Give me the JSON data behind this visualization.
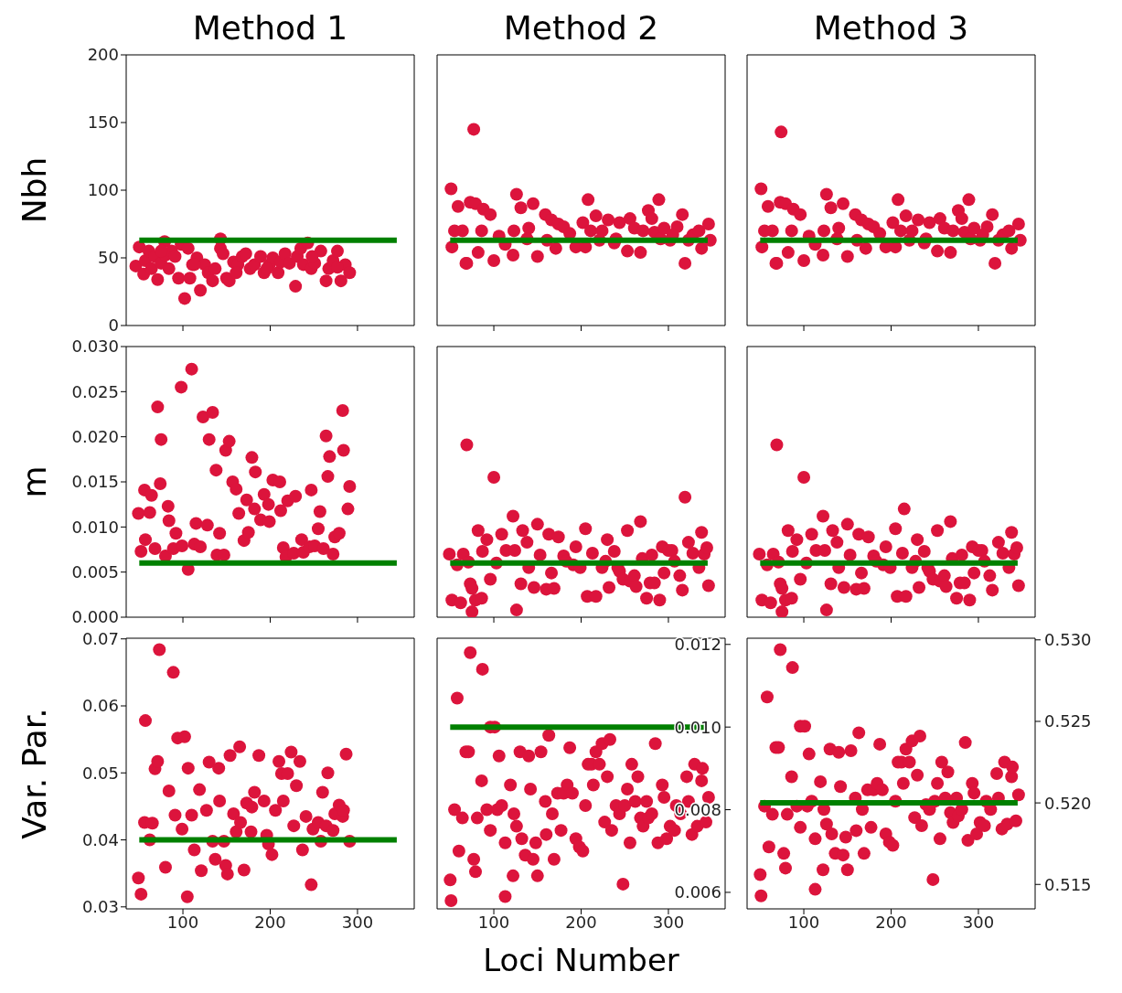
{
  "chart_data": [
    {
      "type": "scatter",
      "title": "Method 1",
      "ylabel": "Nbh",
      "xlim": [
        35,
        365
      ],
      "xticks": [
        100,
        200,
        300
      ],
      "ylim": [
        0,
        200
      ],
      "yticks": [
        0,
        50,
        100,
        150,
        200
      ],
      "tick_labels": "y",
      "series": [
        {
          "type": "scatter",
          "color": "#dc143c",
          "marker": "circle",
          "x": [
            46,
            50,
            55,
            57,
            61,
            64,
            68,
            71,
            75,
            79,
            80,
            84,
            87,
            91,
            95,
            98,
            102,
            106,
            108,
            111,
            116,
            120,
            125,
            129,
            134,
            137,
            143,
            143,
            146,
            150,
            153,
            158,
            163,
            168,
            172,
            177,
            182,
            189,
            193,
            199,
            203,
            209,
            212,
            217,
            222,
            229,
            231,
            235,
            238,
            243,
            247,
            251,
            258,
            264,
            267,
            272,
            277,
            281,
            286,
            291,
            75,
            113,
            161,
            196,
            248,
            277
          ],
          "values": [
            44,
            58,
            38,
            48,
            55,
            42,
            51,
            34,
            46,
            62,
            52,
            42,
            55,
            51,
            35,
            60,
            20,
            57,
            35,
            45,
            50,
            26,
            45,
            39,
            33,
            42,
            57,
            64,
            53,
            35,
            33,
            47,
            45,
            51,
            53,
            42,
            45,
            51,
            39,
            45,
            50,
            39,
            47,
            53,
            46,
            29,
            51,
            57,
            45,
            61,
            42,
            46,
            55,
            33,
            42,
            48,
            55,
            33,
            45,
            39,
            55,
            45,
            39,
            42,
            51,
            43
          ]
        },
        {
          "type": "line",
          "color": "#008000",
          "x": [
            50,
            345
          ],
          "values": [
            63,
            63
          ]
        }
      ]
    },
    {
      "type": "scatter",
      "title": "Method 2",
      "xlim": [
        35,
        365
      ],
      "xticks": [
        100,
        200,
        300
      ],
      "ylim": [
        0,
        200
      ],
      "tick_labels": false,
      "series": [
        {
          "type": "scatter",
          "color": "#dc143c",
          "marker": "circle",
          "x": [
            51,
            52,
            59,
            64,
            69,
            73,
            77,
            79,
            82,
            86,
            88,
            96,
            100,
            106,
            113,
            122,
            123,
            126,
            131,
            140,
            145,
            150,
            159,
            161,
            166,
            171,
            174,
            180,
            187,
            194,
            202,
            205,
            208,
            211,
            217,
            224,
            231,
            238,
            244,
            253,
            256,
            261,
            268,
            271,
            277,
            281,
            284,
            289,
            291,
            295,
            302,
            310,
            316,
            319,
            323,
            328,
            335,
            338,
            346,
            348,
            55,
            68,
            138,
            221,
            240,
            305
          ],
          "values": [
            101,
            58,
            88,
            70,
            46,
            91,
            145,
            90,
            54,
            70,
            86,
            82,
            48,
            66,
            60,
            52,
            70,
            97,
            87,
            72,
            90,
            51,
            82,
            63,
            78,
            57,
            75,
            73,
            68,
            58,
            76,
            58,
            93,
            70,
            81,
            70,
            78,
            61,
            76,
            55,
            79,
            72,
            54,
            70,
            85,
            79,
            69,
            93,
            64,
            72,
            63,
            73,
            82,
            46,
            63,
            67,
            70,
            57,
            75,
            63,
            70,
            46,
            64,
            63,
            64,
            67
          ]
        },
        {
          "type": "line",
          "color": "#008000",
          "x": [
            50,
            345
          ],
          "values": [
            63,
            63
          ]
        }
      ]
    },
    {
      "type": "scatter",
      "title": "Method 3",
      "xlim": [
        35,
        365
      ],
      "xticks": [
        100,
        200,
        300
      ],
      "ylim": [
        0,
        200
      ],
      "tick_labels": false,
      "series": [
        {
          "type": "scatter",
          "color": "#dc143c",
          "marker": "circle",
          "x": [
            51,
            52,
            59,
            64,
            69,
            73,
            74,
            79,
            82,
            86,
            88,
            96,
            100,
            106,
            113,
            122,
            123,
            126,
            131,
            140,
            145,
            150,
            159,
            161,
            166,
            171,
            174,
            180,
            187,
            194,
            202,
            205,
            208,
            211,
            217,
            224,
            231,
            238,
            244,
            253,
            256,
            261,
            268,
            271,
            277,
            281,
            284,
            289,
            291,
            295,
            302,
            310,
            316,
            319,
            323,
            328,
            335,
            338,
            346,
            348,
            55,
            68,
            138,
            221,
            240,
            305
          ],
          "values": [
            101,
            58,
            88,
            70,
            46,
            91,
            143,
            90,
            54,
            70,
            86,
            82,
            48,
            66,
            60,
            52,
            70,
            97,
            87,
            72,
            90,
            51,
            82,
            63,
            78,
            57,
            75,
            73,
            68,
            58,
            76,
            58,
            93,
            70,
            81,
            70,
            78,
            61,
            76,
            55,
            79,
            72,
            54,
            70,
            85,
            79,
            69,
            93,
            64,
            72,
            63,
            73,
            82,
            46,
            63,
            67,
            70,
            57,
            75,
            63,
            70,
            46,
            64,
            63,
            64,
            67
          ]
        },
        {
          "type": "line",
          "color": "#008000",
          "x": [
            50,
            345
          ],
          "values": [
            63,
            63
          ]
        }
      ]
    },
    {
      "type": "scatter",
      "ylabel": "m",
      "xlim": [
        35,
        365
      ],
      "xticks": [
        100,
        200,
        300
      ],
      "ylim": [
        0,
        0.03
      ],
      "yticks": [
        {
          "value": 0,
          "label": "0.000"
        },
        {
          "value": 0.005,
          "label": "0.005"
        },
        {
          "value": 0.01,
          "label": "0.010"
        },
        {
          "value": 0.015,
          "label": "0.015"
        },
        {
          "value": 0.02,
          "label": "0.020"
        },
        {
          "value": 0.025,
          "label": "0.025"
        },
        {
          "value": 0.03,
          "label": "0.030"
        }
      ],
      "tick_labels": "y",
      "series": [
        {
          "type": "scatter",
          "color": "#dc143c",
          "marker": "circle",
          "x": [
            49,
            52,
            56,
            57,
            62,
            64,
            68,
            71,
            74,
            75,
            80,
            83,
            84,
            89,
            92,
            98,
            99,
            106,
            110,
            113,
            115,
            120,
            123,
            128,
            130,
            134,
            138,
            142,
            139,
            147,
            149,
            153,
            157,
            161,
            164,
            170,
            175,
            173,
            179,
            183,
            182,
            189,
            193,
            199,
            198,
            203,
            211,
            212,
            220,
            229,
            215,
            218,
            227,
            236,
            238,
            245,
            247,
            251,
            257,
            255,
            261,
            264,
            266,
            268,
            272,
            274,
            279,
            283,
            284,
            289,
            291
          ],
          "values": [
            0.0115,
            0.0073,
            0.0141,
            0.0086,
            0.0116,
            0.0135,
            0.0076,
            0.0233,
            0.0148,
            0.0197,
            0.0068,
            0.0123,
            0.0107,
            0.0076,
            0.0093,
            0.0255,
            0.0079,
            0.0053,
            0.0275,
            0.0081,
            0.0104,
            0.0078,
            0.0222,
            0.0102,
            0.0197,
            0.0227,
            0.0163,
            0.0093,
            0.0069,
            0.0069,
            0.0185,
            0.0195,
            0.015,
            0.0142,
            0.0115,
            0.0085,
            0.0094,
            0.013,
            0.0177,
            0.0161,
            0.012,
            0.0108,
            0.0136,
            0.0106,
            0.0125,
            0.0152,
            0.015,
            0.0118,
            0.0129,
            0.0134,
            0.0077,
            0.0067,
            0.0071,
            0.0086,
            0.0072,
            0.0078,
            0.0141,
            0.0079,
            0.0117,
            0.0098,
            0.0076,
            0.0201,
            0.0156,
            0.0178,
            0.007,
            0.0089,
            0.0093,
            0.0229,
            0.0185,
            0.012,
            0.0145
          ]
        },
        {
          "type": "line",
          "color": "#008000",
          "x": [
            50,
            345
          ],
          "values": [
            0.006,
            0.006
          ]
        }
      ]
    },
    {
      "type": "scatter",
      "xlim": [
        35,
        365
      ],
      "xticks": [
        100,
        200,
        300
      ],
      "ylim": [
        0,
        0.03
      ],
      "tick_labels": false,
      "series": [
        {
          "type": "scatter",
          "color": "#dc143c",
          "marker": "circle",
          "x": [
            49,
            52,
            58,
            62,
            65,
            69,
            71,
            75,
            75,
            79,
            82,
            86,
            92,
            96,
            100,
            103,
            109,
            114,
            122,
            124,
            126,
            131,
            133,
            138,
            140,
            146,
            150,
            153,
            160,
            163,
            166,
            169,
            174,
            180,
            183,
            191,
            194,
            199,
            205,
            207,
            213,
            217,
            224,
            228,
            230,
            232,
            238,
            242,
            244,
            248,
            253,
            256,
            261,
            263,
            268,
            270,
            275,
            279,
            281,
            284,
            290,
            293,
            295,
            300,
            304,
            307,
            313,
            316,
            319,
            323,
            328,
            335,
            338,
            341,
            344,
            346,
            73,
            87
          ],
          "values": [
            0.007,
            0.0019,
            0.0058,
            0.0016,
            0.007,
            0.0191,
            0.0061,
            0.0032,
            0.0006,
            0.0019,
            0.0096,
            0.0021,
            0.0086,
            0.0042,
            0.0155,
            0.006,
            0.0092,
            0.0074,
            0.0112,
            0.0074,
            0.0008,
            0.0037,
            0.0096,
            0.0083,
            0.0055,
            0.0033,
            0.0103,
            0.0069,
            0.0031,
            0.0092,
            0.0049,
            0.0032,
            0.0089,
            0.0068,
            0.0062,
            0.0058,
            0.0078,
            0.0055,
            0.0098,
            0.0023,
            0.0071,
            0.0023,
            0.0055,
            0.0062,
            0.0086,
            0.0033,
            0.0073,
            0.0055,
            0.0051,
            0.0042,
            0.0096,
            0.004,
            0.0046,
            0.0034,
            0.0106,
            0.0065,
            0.0021,
            0.0038,
            0.0069,
            0.0038,
            0.0019,
            0.0078,
            0.0049,
            0.0074,
            0.0074,
            0.0062,
            0.0046,
            0.003,
            0.0133,
            0.0083,
            0.0071,
            0.0055,
            0.0094,
            0.007,
            0.0077,
            0.0035,
            0.0037,
            0.0073
          ]
        },
        {
          "type": "line",
          "color": "#008000",
          "x": [
            50,
            345
          ],
          "values": [
            0.006,
            0.006
          ]
        }
      ]
    },
    {
      "type": "scatter",
      "xlim": [
        35,
        365
      ],
      "xticks": [
        100,
        200,
        300
      ],
      "ylim": [
        0,
        0.03
      ],
      "tick_labels": false,
      "series": [
        {
          "type": "scatter",
          "color": "#dc143c",
          "marker": "circle",
          "x": [
            49,
            52,
            58,
            62,
            65,
            69,
            71,
            75,
            75,
            79,
            82,
            86,
            92,
            96,
            100,
            103,
            109,
            114,
            122,
            124,
            126,
            131,
            133,
            138,
            140,
            146,
            150,
            153,
            160,
            163,
            166,
            169,
            174,
            180,
            183,
            191,
            194,
            199,
            205,
            207,
            213,
            217,
            224,
            228,
            230,
            232,
            238,
            242,
            244,
            248,
            253,
            256,
            261,
            263,
            268,
            270,
            275,
            279,
            281,
            284,
            290,
            293,
            295,
            300,
            304,
            307,
            313,
            316,
            215,
            323,
            328,
            335,
            338,
            341,
            344,
            346,
            73,
            87
          ],
          "values": [
            0.007,
            0.0019,
            0.0058,
            0.0016,
            0.007,
            0.0191,
            0.0061,
            0.0032,
            0.0006,
            0.0019,
            0.0096,
            0.0021,
            0.0086,
            0.0042,
            0.0155,
            0.006,
            0.0092,
            0.0074,
            0.0112,
            0.0074,
            0.0008,
            0.0037,
            0.0096,
            0.0083,
            0.0055,
            0.0033,
            0.0103,
            0.0069,
            0.0031,
            0.0092,
            0.0049,
            0.0032,
            0.0089,
            0.0068,
            0.0062,
            0.0058,
            0.0078,
            0.0055,
            0.0098,
            0.0023,
            0.0071,
            0.0023,
            0.0055,
            0.0062,
            0.0086,
            0.0033,
            0.0073,
            0.0055,
            0.0051,
            0.0042,
            0.0096,
            0.004,
            0.0046,
            0.0034,
            0.0106,
            0.0065,
            0.0021,
            0.0038,
            0.0069,
            0.0038,
            0.0019,
            0.0078,
            0.0049,
            0.0074,
            0.0074,
            0.0062,
            0.0046,
            0.003,
            0.012,
            0.0083,
            0.0071,
            0.0055,
            0.0094,
            0.007,
            0.0077,
            0.0035,
            0.0037,
            0.0073
          ]
        },
        {
          "type": "line",
          "color": "#008000",
          "x": [
            50,
            345
          ],
          "values": [
            0.006,
            0.006
          ]
        }
      ]
    },
    {
      "type": "scatter",
      "ylabel": "Var. Par.",
      "xlim": [
        35,
        365
      ],
      "xticks": [
        100,
        200,
        300
      ],
      "ylim": [
        0.0297,
        0.0701
      ],
      "yticks": [
        0.03,
        0.04,
        0.05,
        0.06,
        0.07
      ],
      "series": [
        {
          "type": "scatter",
          "color": "#dc143c",
          "marker": "circle",
          "x": [
            49,
            52,
            57,
            56,
            62,
            65,
            68,
            71,
            73,
            80,
            84,
            89,
            91,
            94,
            99,
            102,
            106,
            110,
            113,
            119,
            121,
            127,
            130,
            134,
            141,
            137,
            142,
            147,
            149,
            151,
            154,
            158,
            161,
            165,
            166,
            170,
            173,
            178,
            179,
            187,
            182,
            193,
            196,
            198,
            202,
            206,
            210,
            213,
            215,
            220,
            224,
            227,
            230,
            234,
            237,
            241,
            247,
            249,
            255,
            258,
            264,
            266,
            260,
            272,
            274,
            279,
            283,
            284,
            287,
            291,
            105
          ],
          "values": [
            0.0343,
            0.0319,
            0.0578,
            0.0426,
            0.04,
            0.0425,
            0.0506,
            0.0517,
            0.0684,
            0.0359,
            0.0473,
            0.065,
            0.0437,
            0.0552,
            0.0416,
            0.0554,
            0.0507,
            0.0437,
            0.0385,
            0.0475,
            0.0354,
            0.0444,
            0.0516,
            0.0398,
            0.0507,
            0.0371,
            0.0458,
            0.0398,
            0.0362,
            0.0349,
            0.0526,
            0.0439,
            0.0412,
            0.0539,
            0.0426,
            0.0355,
            0.0455,
            0.0412,
            0.0449,
            0.0526,
            0.0471,
            0.0458,
            0.0407,
            0.0394,
            0.0378,
            0.0444,
            0.0517,
            0.0499,
            0.0458,
            0.0499,
            0.0531,
            0.0421,
            0.0481,
            0.0517,
            0.0385,
            0.0435,
            0.0333,
            0.0416,
            0.0426,
            0.0398,
            0.0421,
            0.05,
            0.0471,
            0.0414,
            0.0439,
            0.0452,
            0.0435,
            0.0444,
            0.0528,
            0.0398,
            0.0315
          ]
        },
        {
          "type": "line",
          "color": "#008000",
          "x": [
            50,
            345
          ],
          "values": [
            0.04,
            0.04
          ]
        }
      ]
    },
    {
      "type": "scatter",
      "xlabel": "Loci Number",
      "xlim": [
        35,
        365
      ],
      "xticks": [
        100,
        200,
        300
      ],
      "y2lim": [
        0.0056,
        0.01215
      ],
      "y2ticks": [
        {
          "value": 0.006,
          "label": "0.006"
        },
        {
          "value": 0.008,
          "label": "0.008"
        },
        {
          "value": 0.01,
          "label": "0.010"
        },
        {
          "value": 0.012,
          "label": "0.012"
        }
      ],
      "series": [
        {
          "type": "scatter",
          "color": "#dc143c",
          "marker": "circle",
          "axis": "y2",
          "x": [
            50,
            51,
            55,
            58,
            60,
            64,
            68,
            71,
            73,
            77,
            79,
            81,
            86,
            87,
            92,
            96,
            96,
            101,
            104,
            106,
            109,
            113,
            113,
            119,
            122,
            123,
            126,
            130,
            132,
            136,
            140,
            142,
            145,
            148,
            150,
            154,
            159,
            160,
            163,
            167,
            169,
            173,
            177,
            180,
            184,
            187,
            190,
            194,
            198,
            202,
            205,
            208,
            212,
            214,
            217,
            221,
            224,
            230,
            233,
            227,
            235,
            240,
            244,
            248,
            250,
            253,
            256,
            258,
            262,
            265,
            268,
            271,
            275,
            277,
            281,
            285,
            288,
            293,
            295,
            298,
            302,
            307,
            309,
            314,
            321,
            323,
            327,
            330,
            333,
            338,
            339,
            343,
            346
          ],
          "values": [
            0.0063,
            0.0058,
            0.008,
            0.0107,
            0.007,
            0.0078,
            0.0094,
            0.0094,
            0.0118,
            0.0068,
            0.0065,
            0.0078,
            0.0087,
            0.0114,
            0.008,
            0.0075,
            0.01,
            0.01,
            0.008,
            0.0093,
            0.0081,
            0.0072,
            0.0059,
            0.0086,
            0.0064,
            0.0079,
            0.0076,
            0.0094,
            0.0073,
            0.0069,
            0.0093,
            0.0085,
            0.0068,
            0.0072,
            0.0064,
            0.0094,
            0.0082,
            0.0074,
            0.0098,
            0.0079,
            0.0068,
            0.0084,
            0.0075,
            0.0084,
            0.0086,
            0.0095,
            0.0084,
            0.0073,
            0.0071,
            0.007,
            0.0081,
            0.0091,
            0.0091,
            0.0086,
            0.0094,
            0.0091,
            0.0096,
            0.0088,
            0.0097,
            0.0077,
            0.0075,
            0.0081,
            0.0079,
            0.0062,
            0.0081,
            0.0085,
            0.0072,
            0.0091,
            0.0082,
            0.0088,
            0.0078,
            0.0076,
            0.0082,
            0.0078,
            0.0079,
            0.0096,
            0.0072,
            0.0086,
            0.0083,
            0.0073,
            0.0076,
            0.0075,
            0.0081,
            0.0079,
            0.0088,
            0.0082,
            0.0074,
            0.0091,
            0.0076,
            0.0087,
            0.009,
            0.0077,
            0.0083
          ]
        },
        {
          "type": "line",
          "color": "#008000",
          "axis": "y2",
          "x": [
            50,
            345
          ],
          "values": [
            0.01,
            0.01
          ]
        }
      ]
    },
    {
      "type": "scatter",
      "xlim": [
        35,
        365
      ],
      "xticks": [
        100,
        200,
        300
      ],
      "y2lim": [
        0.5135,
        0.5301
      ],
      "y2ticks": [
        {
          "value": 0.515,
          "label": "0.515"
        },
        {
          "value": 0.52,
          "label": "0.520"
        },
        {
          "value": 0.525,
          "label": "0.525"
        },
        {
          "value": 0.53,
          "label": "0.530"
        }
      ],
      "series": [
        {
          "type": "scatter",
          "color": "#dc143c",
          "marker": "circle",
          "axis": "y2",
          "x": [
            50,
            51,
            55,
            58,
            60,
            64,
            68,
            71,
            73,
            77,
            79,
            81,
            86,
            87,
            92,
            96,
            96,
            101,
            104,
            106,
            109,
            113,
            113,
            119,
            122,
            123,
            126,
            130,
            132,
            136,
            140,
            142,
            145,
            148,
            150,
            154,
            159,
            160,
            163,
            167,
            169,
            173,
            177,
            180,
            184,
            187,
            190,
            194,
            198,
            202,
            205,
            208,
            212,
            214,
            217,
            221,
            224,
            230,
            233,
            227,
            235,
            240,
            244,
            248,
            250,
            253,
            256,
            258,
            262,
            265,
            268,
            271,
            275,
            277,
            281,
            285,
            288,
            293,
            295,
            298,
            302,
            307,
            309,
            314,
            321,
            323,
            327,
            330,
            333,
            338,
            339,
            343,
            346
          ],
          "values": [
            0.5156,
            0.5143,
            0.5198,
            0.5265,
            0.5173,
            0.5193,
            0.5234,
            0.5234,
            0.5294,
            0.5169,
            0.516,
            0.5193,
            0.5216,
            0.5283,
            0.5198,
            0.5185,
            0.5247,
            0.5247,
            0.5198,
            0.523,
            0.5201,
            0.5178,
            0.5147,
            0.5213,
            0.5159,
            0.5196,
            0.5187,
            0.5233,
            0.5181,
            0.5169,
            0.5231,
            0.521,
            0.5168,
            0.5179,
            0.5159,
            0.5232,
            0.5203,
            0.5183,
            0.5243,
            0.5196,
            0.5169,
            0.5208,
            0.5185,
            0.5208,
            0.5212,
            0.5236,
            0.5208,
            0.5181,
            0.5176,
            0.5174,
            0.5201,
            0.5225,
            0.5225,
            0.5212,
            0.5233,
            0.5225,
            0.5238,
            0.5217,
            0.5241,
            0.5191,
            0.5186,
            0.5199,
            0.5196,
            0.5153,
            0.5201,
            0.5212,
            0.5178,
            0.5225,
            0.5203,
            0.5219,
            0.5194,
            0.5188,
            0.5203,
            0.5192,
            0.5196,
            0.5237,
            0.5177,
            0.5212,
            0.5206,
            0.5181,
            0.5188,
            0.5186,
            0.5201,
            0.5196,
            0.5218,
            0.5203,
            0.5184,
            0.5225,
            0.5187,
            0.5216,
            0.5222,
            0.5189,
            0.5205
          ]
        },
        {
          "type": "line",
          "color": "#008000",
          "axis": "y2",
          "x": [
            50,
            345
          ],
          "values": [
            0.52,
            0.52
          ]
        }
      ]
    }
  ]
}
